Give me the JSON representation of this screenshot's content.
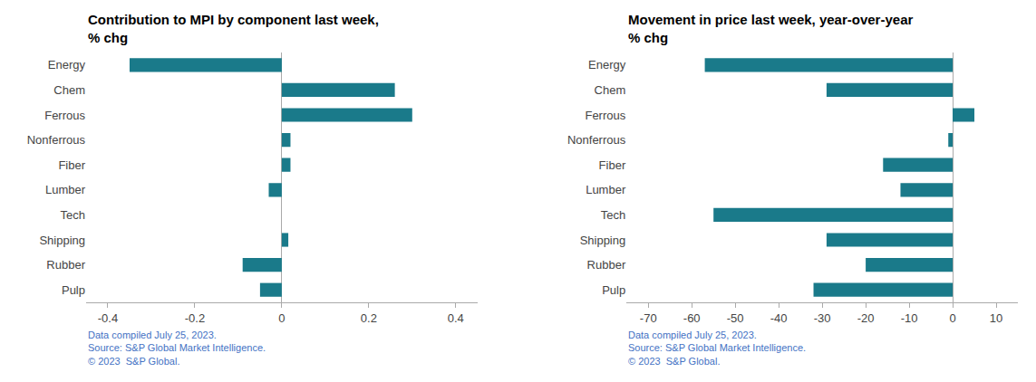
{
  "chart_data": [
    {
      "type": "bar",
      "orientation": "horizontal",
      "title": "Contribution to MPI by component last week,",
      "subtitle": "% chg",
      "categories": [
        "Energy",
        "Chem",
        "Ferrous",
        "Nonferrous",
        "Fiber",
        "Lumber",
        "Tech",
        "Shipping",
        "Rubber",
        "Pulp"
      ],
      "values": [
        -0.35,
        0.26,
        0.3,
        0.02,
        0.02,
        -0.03,
        0.0,
        0.015,
        -0.09,
        -0.05
      ],
      "color": "#1a7a8a",
      "xlim": [
        -0.45,
        0.45
      ],
      "xticks": [
        -0.4,
        -0.2,
        0,
        0.2,
        0.4
      ],
      "grid": false,
      "annotations": [
        "Data compiled July 25, 2023.",
        "Source: S&P Global Market Intelligence.",
        "© 2023  S&P Global."
      ]
    },
    {
      "type": "bar",
      "orientation": "horizontal",
      "title": "Movement in price last week, year-over-year",
      "subtitle": "% chg",
      "categories": [
        "Energy",
        "Chem",
        "Ferrous",
        "Nonferrous",
        "Fiber",
        "Lumber",
        "Tech",
        "Shipping",
        "Rubber",
        "Pulp"
      ],
      "values": [
        -57,
        -29,
        5,
        -1,
        -16,
        -12,
        -55,
        -29,
        -20,
        -32
      ],
      "color": "#1a7a8a",
      "xlim": [
        -75,
        15
      ],
      "xticks": [
        -70,
        -60,
        -50,
        -40,
        -30,
        -20,
        -10,
        0,
        10
      ],
      "grid": false,
      "annotations": [
        "Data compiled July 25, 2023.",
        "Source: S&P Global Market Intelligence.",
        "© 2023  S&P Global."
      ]
    }
  ]
}
